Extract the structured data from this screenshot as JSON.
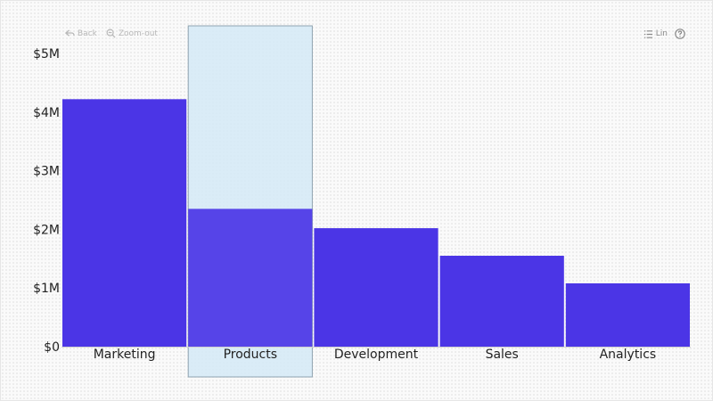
{
  "toolbar": {
    "back_label": "Back",
    "zoom_out_label": "Zoom-out",
    "scale_label": "Lin",
    "icons": {
      "back": "back-arrow-icon",
      "zoom_out": "zoom-out-icon",
      "scale": "list-icon",
      "help": "help-icon"
    }
  },
  "colors": {
    "bar": "#4b35e6",
    "highlight_fill": "#d4e9f6",
    "highlight_stroke": "#8fa3b0",
    "axis": "#cfcfcf",
    "text": "#222222"
  },
  "chart_data": {
    "type": "bar",
    "title": "",
    "xlabel": "",
    "ylabel": "",
    "categories": [
      "Marketing",
      "Products",
      "Development",
      "Sales",
      "Analytics"
    ],
    "values": [
      4220000,
      2350000,
      2020000,
      1550000,
      1080000
    ],
    "ylim": [
      0,
      5000000
    ],
    "yticks": [
      0,
      1000000,
      2000000,
      3000000,
      4000000,
      5000000
    ],
    "ytick_labels": [
      "$0",
      "$1M",
      "$2M",
      "$3M",
      "$4M",
      "$5M"
    ],
    "highlighted_category": "Products",
    "grid": false,
    "legend": "none"
  }
}
